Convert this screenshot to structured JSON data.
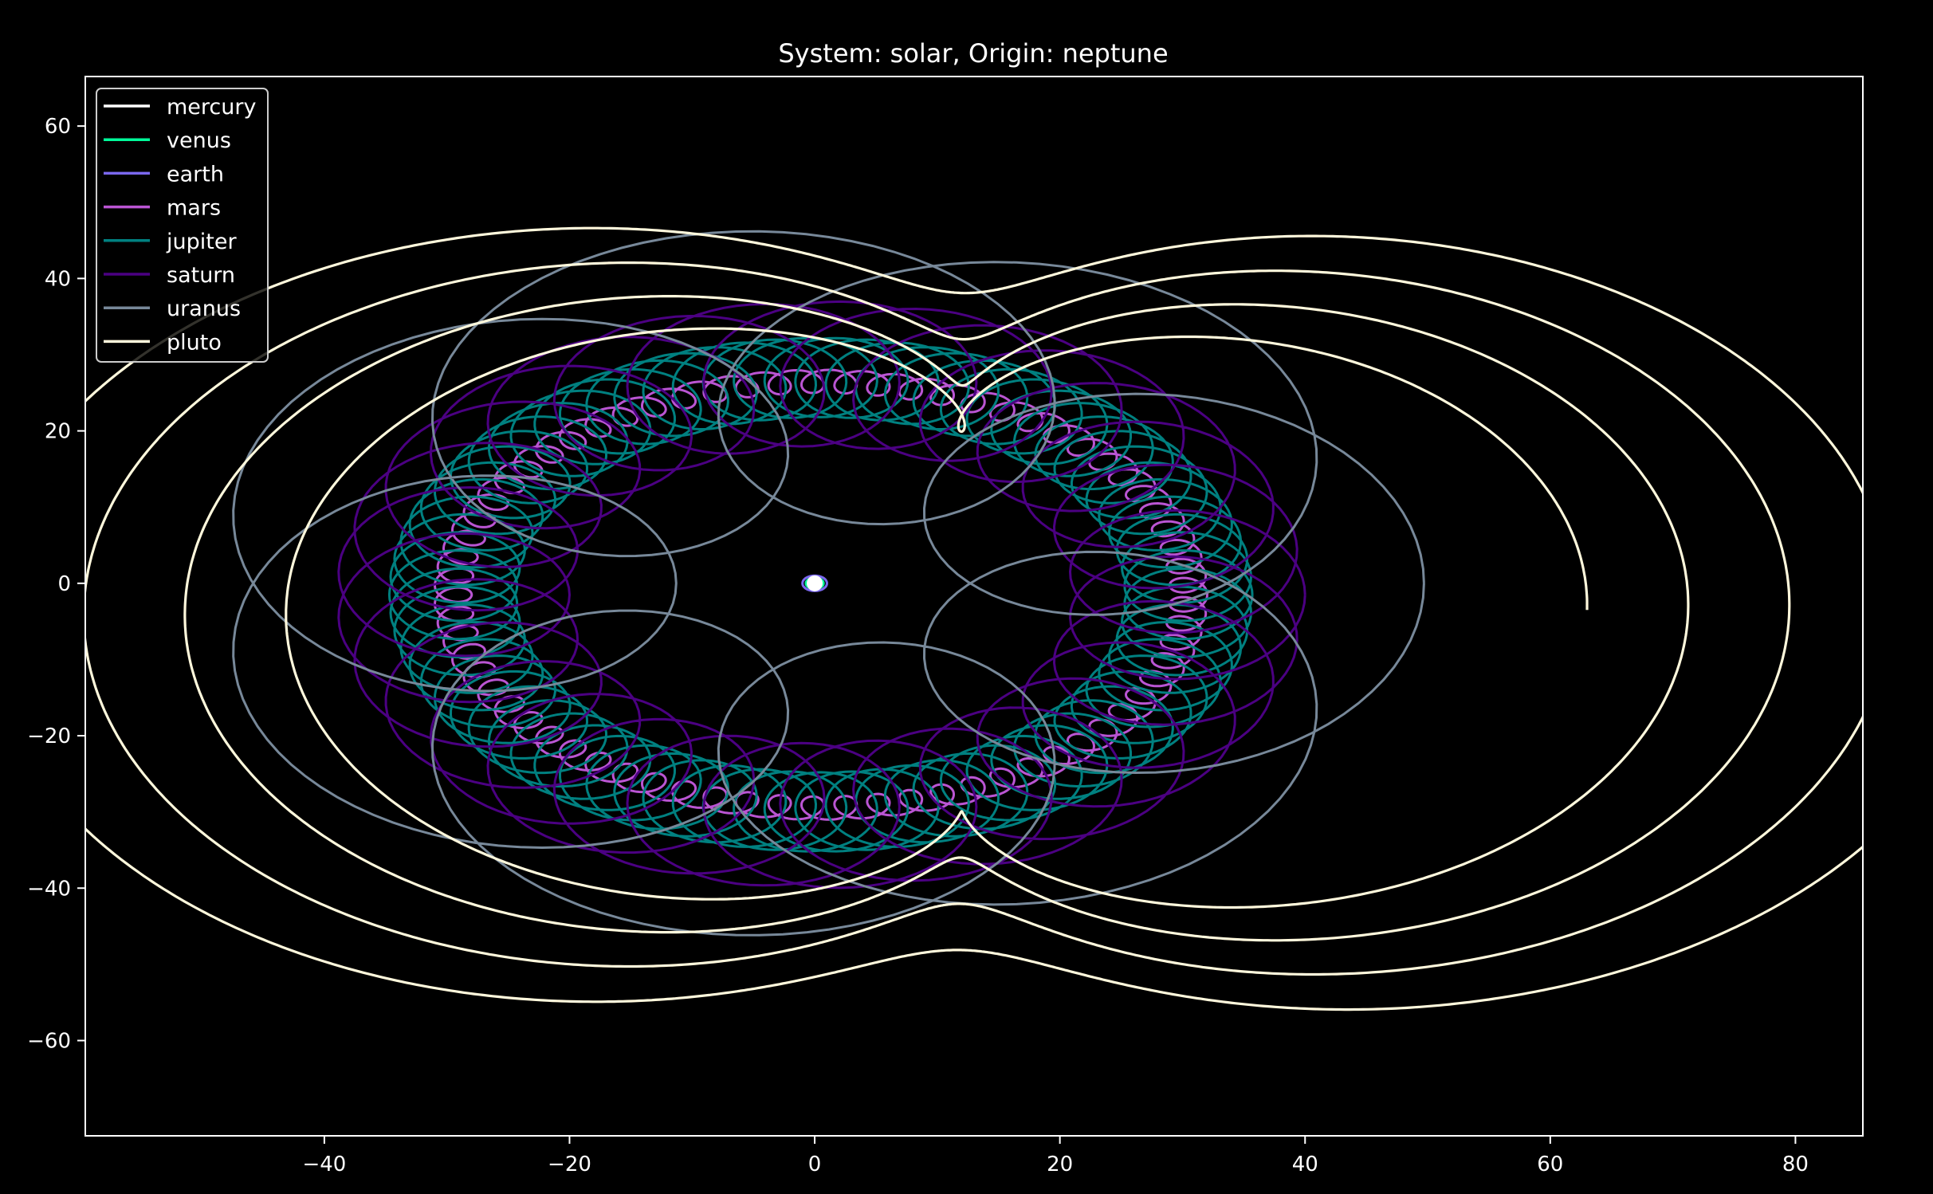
{
  "chart_data": {
    "type": "line",
    "title": "System: solar, Origin: neptune",
    "xlabel": "",
    "ylabel": "",
    "xlim": [
      -59.5,
      85.5
    ],
    "ylim": [
      -72.5,
      66.5
    ],
    "xticks": [
      -40,
      -20,
      0,
      20,
      40,
      60,
      80
    ],
    "yticks": [
      60,
      40,
      20,
      0,
      -20,
      -40,
      -60
    ],
    "grid": false,
    "legend_position": "top-left",
    "origin_marker": {
      "x": 0,
      "y": 0,
      "color": "#ffffff"
    },
    "series": [
      {
        "name": "mercury",
        "color": "#ffffff",
        "model": {
          "kind": "epicycle",
          "R": 0.0,
          "Ry": 0.0,
          "r": 0.39,
          "k": 300,
          "cx": 0,
          "cy": 0,
          "turns": 1
        }
      },
      {
        "name": "venus",
        "color": "#00fa9a",
        "model": {
          "kind": "epicycle",
          "R": 0.0,
          "Ry": 0.0,
          "r": 0.72,
          "k": 120,
          "cx": 0,
          "cy": 0,
          "turns": 1
        }
      },
      {
        "name": "earth",
        "color": "#7b68ee",
        "model": {
          "kind": "epicycle",
          "R": 0.0,
          "Ry": 0.0,
          "r": 1.0,
          "k": 80,
          "cx": 0,
          "cy": 0,
          "turns": 1
        }
      },
      {
        "name": "mars",
        "color": "#ba55d3",
        "model": {
          "kind": "epicycle",
          "R": 30.0,
          "Ry": 28.0,
          "r": 1.52,
          "k": 70,
          "cx": 0.5,
          "cy": -1.5,
          "turns": 1
        }
      },
      {
        "name": "jupiter",
        "color": "#008080",
        "model": {
          "kind": "epicycle",
          "R": 30.0,
          "Ry": 28.5,
          "r": 5.2,
          "k": 75,
          "cx": 0.5,
          "cy": -1.5,
          "turns": 1
        }
      },
      {
        "name": "saturn",
        "color": "#4b0082",
        "model": {
          "kind": "epicycle",
          "R": 30.0,
          "Ry": 29.0,
          "r": 9.5,
          "k": 30,
          "cx": 0.5,
          "cy": -1.5,
          "turns": 1
        }
      },
      {
        "name": "uranus",
        "color": "#778899",
        "model": {
          "kind": "epicycle",
          "R": 30.5,
          "Ry": 27.5,
          "r": 19.2,
          "k": 8,
          "cx": 0.0,
          "cy": 0.0,
          "turns": 1
        }
      },
      {
        "name": "pluto",
        "color": "#fff8dc",
        "model": {
          "kind": "loops",
          "cx": 12,
          "cy": -3.5,
          "a1": 37,
          "b1": 37,
          "a2": 70,
          "b2": 62,
          "r": 14,
          "ecc": 0.6,
          "turns": 4
        }
      }
    ]
  }
}
